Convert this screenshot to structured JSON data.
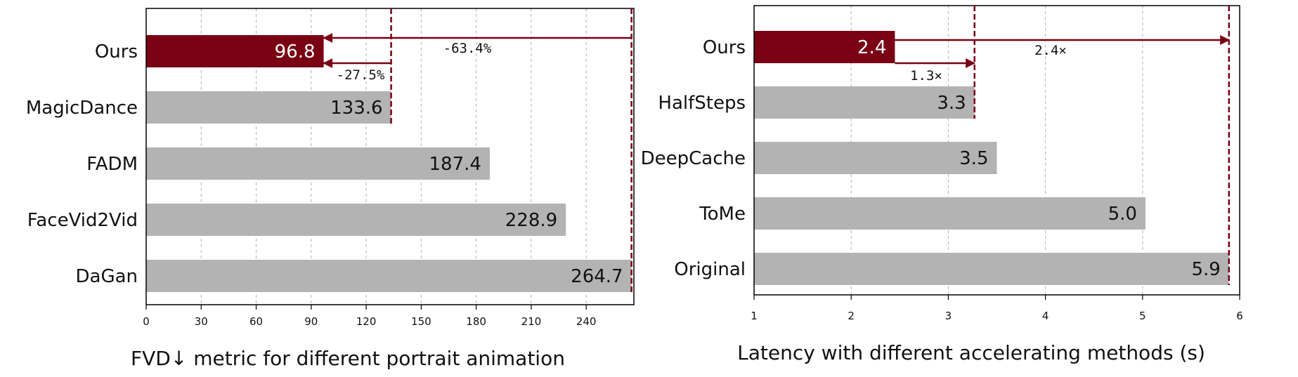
{
  "colors": {
    "highlight": "#7a0014",
    "bar": "#b3b3b3",
    "annotation": "#7a0014",
    "grid": "#b0b0b0"
  },
  "chart_data": [
    {
      "type": "bar",
      "orientation": "horizontal",
      "xlabel": "FVD↓ metric for different portrait animation",
      "categories": [
        "Ours",
        "MagicDance",
        "FADM",
        "FaceVid2Vid",
        "DaGan"
      ],
      "values": [
        96.8,
        133.6,
        187.4,
        228.9,
        264.7
      ],
      "value_labels": [
        "96.8",
        "133.6",
        "187.4",
        "228.9",
        "264.7"
      ],
      "highlight_index": 0,
      "xlim": [
        0,
        266
      ],
      "xticks": [
        0,
        30,
        60,
        90,
        120,
        150,
        180,
        210,
        240
      ],
      "grid": "vertical dashed",
      "annotations": [
        {
          "label": "-63.4%",
          "from_value": 264.7,
          "to_value": 96.8
        },
        {
          "label": "-27.5%",
          "from_value": 133.6,
          "to_value": 96.8
        }
      ]
    },
    {
      "type": "bar",
      "orientation": "horizontal",
      "xlabel": "Latency with different accelerating methods (s)",
      "categories": [
        "Ours",
        "HalfSteps",
        "DeepCache",
        "ToMe",
        "Original"
      ],
      "values": [
        2.45,
        3.27,
        3.5,
        5.03,
        5.89
      ],
      "value_labels": [
        "2.4",
        "3.3",
        "3.5",
        "5.0",
        "5.9"
      ],
      "highlight_index": 0,
      "xlim": [
        1,
        6
      ],
      "xticks": [
        1,
        2,
        3,
        4,
        5,
        6
      ],
      "grid": "vertical dashed",
      "annotations": [
        {
          "label": "2.4×",
          "from_value": 2.45,
          "to_value": 5.89
        },
        {
          "label": "1.3×",
          "from_value": 2.45,
          "to_value": 3.27
        }
      ]
    }
  ]
}
